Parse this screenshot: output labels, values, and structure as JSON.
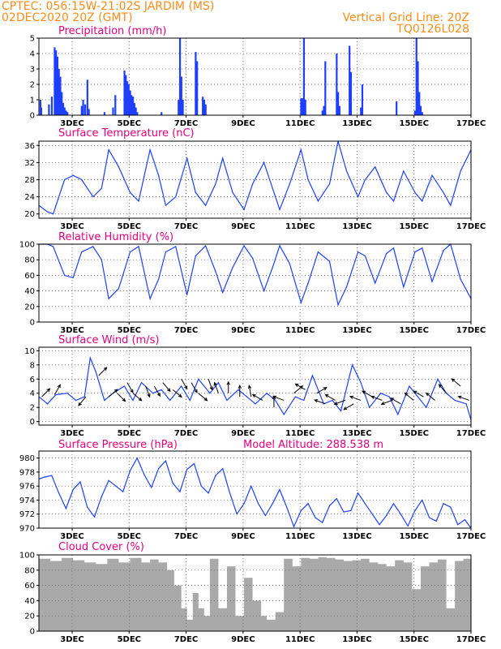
{
  "header": {
    "source_line": "CPTEC:   056:15W-21:02S   JARDIM (MS)",
    "date_line": "02DEC2020 20Z (GMT)",
    "grid_note": "Vertical Grid Line: 20Z",
    "code": "TQ0126L028"
  },
  "colors": {
    "series": "#1f3fff",
    "cloud": "#a9a9a9",
    "header": "#ff8c1a",
    "titles": "#e6007e",
    "grid": "#555555"
  },
  "x_axis": {
    "tick_labels": [
      "3DEC",
      "5DEC",
      "7DEC",
      "9DEC",
      "11DEC",
      "13DEC",
      "15DEC",
      "17DEC"
    ],
    "tick_positions_days": [
      1.1667,
      3.1667,
      5.1667,
      7.1667,
      9.1667,
      11.1667,
      13.1667,
      15.1667
    ],
    "start": "02DEC2020 20Z",
    "range_days": [
      0,
      15.1667
    ]
  },
  "chart_data": [
    {
      "id": "precip",
      "type": "bar",
      "title": "Precipitation (mm/h)",
      "ylim": [
        0,
        5
      ],
      "yticks": [
        0,
        1,
        2,
        3,
        4,
        5
      ],
      "grid": true,
      "x_days": [
        0.05,
        0.08,
        0.35,
        0.45,
        0.55,
        0.6,
        0.65,
        0.7,
        0.75,
        0.8,
        0.85,
        0.9,
        0.95,
        1.0,
        1.5,
        1.55,
        1.62,
        1.7,
        1.75,
        2.3,
        2.6,
        2.68,
        3.0,
        3.05,
        3.1,
        3.15,
        3.2,
        3.25,
        3.3,
        3.35,
        3.4,
        3.45,
        4.3,
        4.9,
        4.95,
        5.0,
        5.05,
        5.5,
        5.55,
        5.75,
        5.8,
        5.85,
        9.2,
        9.25,
        9.3,
        9.35,
        9.95,
        10.0,
        10.05,
        10.45,
        10.5,
        10.55,
        10.9,
        10.95,
        11.3,
        11.35,
        12.55,
        13.2,
        13.25,
        13.3,
        13.35,
        13.4,
        13.45
      ],
      "values": [
        1.0,
        0.5,
        0.7,
        1.2,
        4.4,
        4.2,
        3.8,
        3.0,
        2.5,
        1.5,
        0.8,
        0.5,
        0.3,
        0.2,
        0.6,
        1.0,
        0.7,
        2.3,
        0.4,
        0.2,
        0.5,
        1.3,
        2.9,
        2.6,
        2.2,
        2.0,
        1.6,
        1.3,
        1.2,
        0.8,
        0.5,
        0.2,
        0.2,
        1.0,
        5.0,
        2.5,
        1.0,
        4.1,
        3.5,
        1.2,
        1.0,
        0.7,
        1.1,
        1.1,
        5.0,
        1.0,
        0.3,
        0.6,
        3.5,
        4.0,
        1.5,
        0.6,
        4.5,
        2.8,
        0.5,
        2.0,
        0.9,
        0.3,
        5.0,
        3.5,
        1.5,
        0.6,
        0.2
      ]
    },
    {
      "id": "temp",
      "type": "line",
      "title": "Surface Temperature (nC)",
      "ylim": [
        19,
        37
      ],
      "yticks": [
        20,
        24,
        28,
        32,
        36
      ],
      "grid": true,
      "x_days": [
        0.0,
        0.3,
        0.5,
        0.9,
        1.2,
        1.5,
        1.9,
        2.2,
        2.45,
        2.8,
        3.2,
        3.5,
        3.9,
        4.2,
        4.45,
        4.8,
        5.2,
        5.5,
        5.85,
        6.2,
        6.45,
        6.8,
        7.2,
        7.5,
        7.9,
        8.2,
        8.45,
        8.8,
        9.2,
        9.45,
        9.8,
        10.2,
        10.5,
        10.8,
        11.2,
        11.45,
        11.8,
        12.2,
        12.45,
        12.8,
        13.2,
        13.45,
        13.8,
        14.2,
        14.45,
        14.8,
        15.1667
      ],
      "values": [
        22,
        20.5,
        20,
        28,
        29,
        28,
        24,
        26,
        35,
        31,
        25,
        23,
        35,
        29,
        22,
        24,
        33,
        25,
        22,
        27,
        33,
        25,
        21,
        27,
        32,
        26,
        21,
        27,
        35,
        28,
        23,
        27,
        37,
        30,
        24,
        28,
        31,
        25,
        23,
        30,
        25,
        23,
        29,
        25,
        22,
        30,
        35
      ]
    },
    {
      "id": "rh",
      "type": "line",
      "title": "Relative Humidity (%)",
      "ylim": [
        0,
        100
      ],
      "yticks": [
        0,
        20,
        40,
        60,
        80,
        100
      ],
      "grid": true,
      "x_days": [
        0.0,
        0.3,
        0.5,
        0.9,
        1.2,
        1.5,
        1.9,
        2.2,
        2.45,
        2.8,
        3.2,
        3.5,
        3.9,
        4.2,
        4.45,
        4.8,
        5.2,
        5.5,
        5.85,
        6.2,
        6.45,
        6.8,
        7.2,
        7.5,
        7.9,
        8.2,
        8.45,
        8.8,
        9.2,
        9.45,
        9.8,
        10.2,
        10.5,
        10.8,
        11.2,
        11.45,
        11.8,
        12.2,
        12.45,
        12.8,
        13.2,
        13.45,
        13.8,
        14.2,
        14.45,
        14.8,
        15.1667
      ],
      "values": [
        100,
        100,
        97,
        60,
        57,
        90,
        97,
        80,
        30,
        43,
        90,
        97,
        30,
        55,
        90,
        97,
        35,
        85,
        98,
        65,
        38,
        70,
        98,
        82,
        40,
        70,
        98,
        75,
        25,
        50,
        90,
        78,
        22,
        45,
        90,
        85,
        50,
        88,
        95,
        45,
        90,
        95,
        52,
        92,
        100,
        55,
        30
      ]
    },
    {
      "id": "wind",
      "type": "line",
      "title": "Surface Wind (m/s)",
      "ylim": [
        -0.5,
        10.5
      ],
      "yticks": [
        0,
        2,
        4,
        6,
        8,
        10
      ],
      "grid": true,
      "x_days": [
        0.0,
        0.3,
        0.6,
        1.0,
        1.3,
        1.6,
        1.8,
        2.0,
        2.3,
        2.6,
        3.0,
        3.3,
        3.6,
        4.0,
        4.3,
        4.6,
        5.0,
        5.3,
        5.6,
        6.0,
        6.3,
        6.6,
        7.0,
        7.3,
        7.6,
        8.0,
        8.3,
        8.6,
        9.0,
        9.3,
        9.6,
        10.0,
        10.3,
        10.6,
        11.0,
        11.3,
        11.6,
        12.0,
        12.3,
        12.6,
        13.0,
        13.3,
        13.6,
        14.0,
        14.3,
        14.6,
        15.0,
        15.1667
      ],
      "values": [
        3.5,
        2.5,
        3.8,
        4.0,
        3.0,
        3.5,
        9.0,
        7.0,
        3.0,
        4.0,
        5.0,
        3.0,
        5.5,
        4.0,
        4.5,
        3.0,
        5.0,
        3.0,
        6.0,
        4.0,
        5.5,
        3.0,
        4.5,
        3.5,
        2.5,
        4.0,
        3.0,
        1.0,
        3.5,
        3.0,
        6.5,
        2.5,
        3.0,
        1.5,
        8.0,
        5.5,
        2.0,
        4.0,
        3.5,
        1.0,
        5.0,
        3.5,
        2.0,
        6.0,
        4.0,
        3.0,
        2.5,
        0.2
      ],
      "vectors": [
        {
          "x_day": 0.1,
          "dir_deg": 45,
          "speed": 3.5
        },
        {
          "x_day": 0.55,
          "dir_deg": 60,
          "speed": 3.8
        },
        {
          "x_day": 1.65,
          "dir_deg": 230,
          "speed": 3.5
        },
        {
          "x_day": 2.1,
          "dir_deg": 45,
          "speed": 6.5
        },
        {
          "x_day": 2.45,
          "dir_deg": 40,
          "speed": 3.5
        },
        {
          "x_day": 2.75,
          "dir_deg": 315,
          "speed": 4.0
        },
        {
          "x_day": 3.1,
          "dir_deg": 300,
          "speed": 5.5
        },
        {
          "x_day": 3.3,
          "dir_deg": 320,
          "speed": 4.0
        },
        {
          "x_day": 3.75,
          "dir_deg": 290,
          "speed": 5.0
        },
        {
          "x_day": 4.05,
          "dir_deg": 300,
          "speed": 5.0
        },
        {
          "x_day": 4.35,
          "dir_deg": 310,
          "speed": 5.5
        },
        {
          "x_day": 4.7,
          "dir_deg": 320,
          "speed": 4.5
        },
        {
          "x_day": 5.0,
          "dir_deg": 300,
          "speed": 6.0
        },
        {
          "x_day": 5.35,
          "dir_deg": 300,
          "speed": 5.5
        },
        {
          "x_day": 5.6,
          "dir_deg": 320,
          "speed": 4.0
        },
        {
          "x_day": 5.95,
          "dir_deg": 290,
          "speed": 6.0
        },
        {
          "x_day": 6.3,
          "dir_deg": 110,
          "speed": 4.0
        },
        {
          "x_day": 6.65,
          "dir_deg": 90,
          "speed": 4.0
        },
        {
          "x_day": 7.05,
          "dir_deg": 90,
          "speed": 3.5
        },
        {
          "x_day": 7.45,
          "dir_deg": 100,
          "speed": 3.5
        },
        {
          "x_day": 7.85,
          "dir_deg": 150,
          "speed": 3.0
        },
        {
          "x_day": 8.25,
          "dir_deg": 90,
          "speed": 2.0
        },
        {
          "x_day": 8.6,
          "dir_deg": 160,
          "speed": 3.0
        },
        {
          "x_day": 8.95,
          "dir_deg": 40,
          "speed": 4.0
        },
        {
          "x_day": 9.35,
          "dir_deg": 150,
          "speed": 4.5
        },
        {
          "x_day": 9.75,
          "dir_deg": 30,
          "speed": 4.0
        },
        {
          "x_day": 10.05,
          "dir_deg": 160,
          "speed": 2.5
        },
        {
          "x_day": 10.4,
          "dir_deg": 150,
          "speed": 3.0
        },
        {
          "x_day": 10.75,
          "dir_deg": 200,
          "speed": 3.0
        },
        {
          "x_day": 11.05,
          "dir_deg": 210,
          "speed": 2.5
        },
        {
          "x_day": 11.3,
          "dir_deg": 160,
          "speed": 3.0
        },
        {
          "x_day": 11.7,
          "dir_deg": 150,
          "speed": 3.5
        },
        {
          "x_day": 12.05,
          "dir_deg": 160,
          "speed": 3.0
        },
        {
          "x_day": 12.4,
          "dir_deg": 200,
          "speed": 3.0
        },
        {
          "x_day": 12.7,
          "dir_deg": 150,
          "speed": 2.5
        },
        {
          "x_day": 13.15,
          "dir_deg": 140,
          "speed": 3.0
        },
        {
          "x_day": 13.5,
          "dir_deg": 150,
          "speed": 3.5
        },
        {
          "x_day": 13.9,
          "dir_deg": 140,
          "speed": 3.0
        },
        {
          "x_day": 14.3,
          "dir_deg": 130,
          "speed": 4.0
        },
        {
          "x_day": 14.8,
          "dir_deg": 140,
          "speed": 5.0
        },
        {
          "x_day": 15.1,
          "dir_deg": 160,
          "speed": 3.0
        }
      ]
    },
    {
      "id": "pres",
      "type": "line",
      "title": "Surface Pressure (hPa)",
      "note": "Model Altitude: 288.538 m",
      "ylim": [
        970,
        981
      ],
      "yticks": [
        970,
        972,
        974,
        976,
        978,
        980
      ],
      "grid": true,
      "x_days": [
        0.0,
        0.2,
        0.45,
        0.7,
        0.95,
        1.2,
        1.45,
        1.7,
        1.95,
        2.2,
        2.45,
        2.7,
        2.95,
        3.2,
        3.45,
        3.7,
        3.95,
        4.2,
        4.45,
        4.7,
        4.95,
        5.2,
        5.45,
        5.7,
        5.95,
        6.2,
        6.45,
        6.7,
        6.95,
        7.2,
        7.45,
        7.7,
        7.95,
        8.2,
        8.45,
        8.7,
        8.95,
        9.2,
        9.45,
        9.7,
        9.95,
        10.2,
        10.45,
        10.7,
        10.95,
        11.2,
        11.45,
        11.7,
        11.95,
        12.2,
        12.45,
        12.7,
        12.95,
        13.2,
        13.45,
        13.7,
        13.95,
        14.2,
        14.45,
        14.7,
        14.95,
        15.1667
      ],
      "values": [
        977,
        977.3,
        977.5,
        975,
        972.8,
        975.5,
        976.6,
        973,
        971.6,
        974.5,
        976.8,
        976,
        975.2,
        978.2,
        980,
        977.6,
        975.8,
        978.5,
        979.6,
        976.4,
        975.2,
        978.4,
        979.2,
        976.0,
        975.0,
        977.5,
        978.5,
        975.0,
        972.0,
        973.5,
        976.0,
        973.5,
        971.8,
        973.5,
        975.5,
        973.0,
        970.2,
        972.5,
        973.5,
        971.5,
        970.8,
        973.2,
        974.2,
        972.3,
        972.5,
        975.0,
        973.5,
        972.0,
        970.5,
        971.8,
        973.5,
        972.0,
        970.3,
        972.5,
        974.0,
        971.5,
        971.0,
        973.5,
        973.0,
        970.5,
        971.2,
        970.0
      ]
    },
    {
      "id": "cloud",
      "type": "area",
      "title": "Cloud Cover (%)",
      "ylim": [
        0,
        100
      ],
      "yticks": [
        0,
        20,
        40,
        60,
        80,
        100
      ],
      "grid": true,
      "x_days": [
        0.0,
        0.4,
        0.8,
        1.2,
        1.6,
        2.0,
        2.4,
        2.8,
        3.2,
        3.6,
        3.9,
        4.2,
        4.5,
        4.75,
        5.0,
        5.2,
        5.4,
        5.6,
        5.8,
        6.0,
        6.3,
        6.6,
        6.9,
        7.2,
        7.5,
        7.8,
        8.0,
        8.3,
        8.6,
        8.9,
        9.2,
        9.5,
        9.8,
        10.1,
        10.4,
        10.7,
        11.0,
        11.3,
        11.6,
        11.9,
        12.2,
        12.5,
        12.8,
        13.1,
        13.4,
        13.7,
        14.0,
        14.3,
        14.6,
        14.9,
        15.1667
      ],
      "values": [
        95,
        92,
        96,
        93,
        90,
        88,
        95,
        90,
        96,
        90,
        94,
        90,
        80,
        60,
        30,
        15,
        50,
        30,
        20,
        95,
        30,
        85,
        20,
        70,
        40,
        20,
        15,
        25,
        95,
        85,
        96,
        95,
        97,
        96,
        94,
        92,
        93,
        95,
        90,
        88,
        85,
        93,
        90,
        55,
        85,
        90,
        94,
        30,
        92,
        95,
        96
      ]
    }
  ]
}
